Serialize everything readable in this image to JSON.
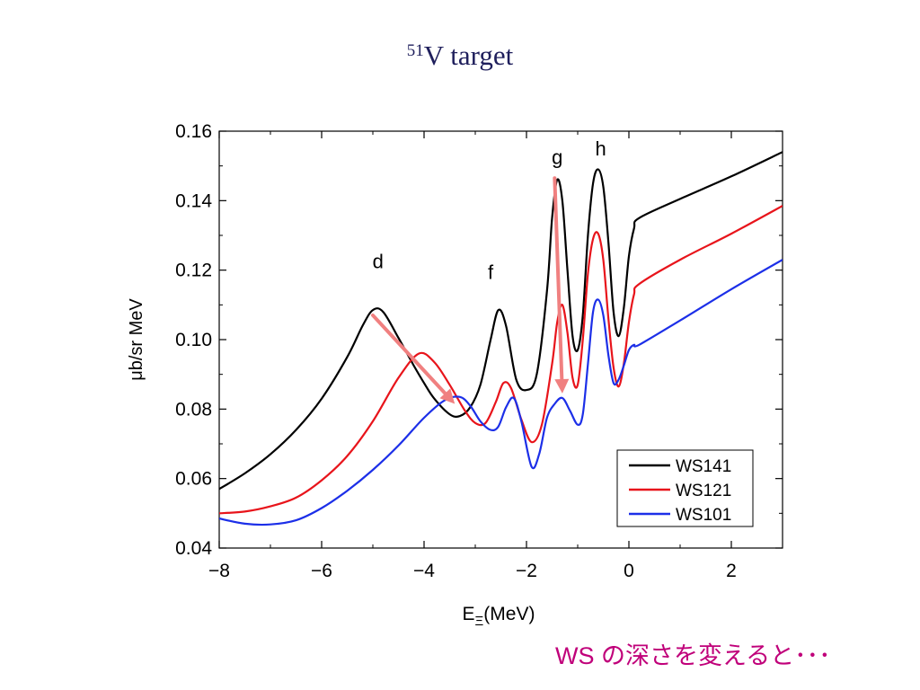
{
  "title": {
    "sup": "51",
    "text": "V target"
  },
  "caption": "WS の深さを変えると･･･",
  "chart_data": {
    "type": "line",
    "xlabel": "E",
    "xlabel_sub": "Ξ",
    "xlabel_unit": "(MeV)",
    "ylabel": "μb/sr MeV",
    "xlim": [
      -8,
      3
    ],
    "ylim": [
      0.04,
      0.16
    ],
    "xticks": [
      -8,
      -6,
      -4,
      -2,
      0,
      2
    ],
    "yticks": [
      0.04,
      0.06,
      0.08,
      0.1,
      0.12,
      0.14,
      0.16
    ],
    "xtick_labels": [
      "−8",
      "−6",
      "−4",
      "−2",
      "0",
      "2"
    ],
    "ytick_labels": [
      "0.04",
      "0.06",
      "0.08",
      "0.10",
      "0.12",
      "0.14",
      "0.16"
    ],
    "legend_position": "bottom-right",
    "series": [
      {
        "name": "WS141",
        "color": "#000000",
        "x": [
          -8,
          -7.5,
          -7,
          -6.5,
          -6,
          -5.5,
          -5.2,
          -5,
          -4.8,
          -4.5,
          -4.2,
          -4,
          -3.8,
          -3.5,
          -3.3,
          -3.1,
          -2.9,
          -2.7,
          -2.55,
          -2.4,
          -2.2,
          -2.0,
          -1.8,
          -1.6,
          -1.5,
          -1.4,
          -1.3,
          -1.2,
          -1.1,
          -1.0,
          -0.9,
          -0.8,
          -0.7,
          -0.6,
          -0.5,
          -0.4,
          -0.3,
          -0.2,
          -0.1,
          0,
          0.1,
          0.2,
          1,
          2,
          3
        ],
        "y": [
          0.057,
          0.0615,
          0.067,
          0.074,
          0.083,
          0.095,
          0.104,
          0.1085,
          0.108,
          0.1005,
          0.0925,
          0.0875,
          0.083,
          0.0785,
          0.078,
          0.0805,
          0.087,
          0.1,
          0.1085,
          0.104,
          0.0885,
          0.0855,
          0.09,
          0.114,
          0.135,
          0.146,
          0.14,
          0.12,
          0.101,
          0.097,
          0.107,
          0.13,
          0.145,
          0.149,
          0.144,
          0.128,
          0.108,
          0.101,
          0.109,
          0.124,
          0.132,
          0.135,
          0.1405,
          0.147,
          0.154
        ]
      },
      {
        "name": "WS121",
        "color": "#e8141b",
        "x": [
          -8,
          -7.5,
          -7,
          -6.5,
          -6,
          -5.5,
          -5,
          -4.5,
          -4.1,
          -3.8,
          -3.5,
          -3.2,
          -3,
          -2.8,
          -2.6,
          -2.45,
          -2.3,
          -2.1,
          -1.9,
          -1.7,
          -1.5,
          -1.4,
          -1.3,
          -1.2,
          -1.1,
          -1.0,
          -0.9,
          -0.8,
          -0.7,
          -0.6,
          -0.5,
          -0.4,
          -0.3,
          -0.2,
          -0.1,
          0,
          0.1,
          0.2,
          1,
          2,
          3
        ],
        "y": [
          0.05,
          0.0505,
          0.052,
          0.0545,
          0.0595,
          0.0665,
          0.0765,
          0.089,
          0.096,
          0.0935,
          0.087,
          0.0795,
          0.076,
          0.076,
          0.082,
          0.0875,
          0.086,
          0.077,
          0.0705,
          0.0755,
          0.093,
          0.105,
          0.11,
          0.102,
          0.089,
          0.087,
          0.1,
          0.119,
          0.129,
          0.1305,
          0.123,
          0.106,
          0.092,
          0.0865,
          0.093,
          0.105,
          0.113,
          0.116,
          0.123,
          0.1305,
          0.1385
        ]
      },
      {
        "name": "WS101",
        "color": "#1c2fe8",
        "x": [
          -8,
          -7.5,
          -7,
          -6.5,
          -6,
          -5.5,
          -5,
          -4.5,
          -4,
          -3.6,
          -3.3,
          -3.1,
          -2.9,
          -2.7,
          -2.55,
          -2.4,
          -2.25,
          -2.1,
          -1.9,
          -1.75,
          -1.6,
          -1.45,
          -1.3,
          -1.15,
          -1.0,
          -0.9,
          -0.8,
          -0.7,
          -0.6,
          -0.5,
          -0.4,
          -0.3,
          -0.2,
          -0.1,
          0,
          0.1,
          0.2,
          1,
          2,
          3
        ],
        "y": [
          0.0485,
          0.047,
          0.0468,
          0.048,
          0.0515,
          0.0565,
          0.0625,
          0.0695,
          0.0775,
          0.0825,
          0.0835,
          0.081,
          0.0765,
          0.074,
          0.075,
          0.0805,
          0.0832,
          0.0765,
          0.0634,
          0.0672,
          0.0775,
          0.0815,
          0.0832,
          0.0795,
          0.0755,
          0.0785,
          0.093,
          0.108,
          0.1115,
          0.107,
          0.0955,
          0.0875,
          0.0885,
          0.0925,
          0.097,
          0.0985,
          0.0985,
          0.1055,
          0.1145,
          0.123
        ]
      }
    ],
    "annotations": [
      {
        "label": "d",
        "x": -4.9,
        "y": 0.1205
      },
      {
        "label": "f",
        "x": -2.7,
        "y": 0.1175
      },
      {
        "label": "g",
        "x": -1.4,
        "y": 0.1505
      },
      {
        "label": "h",
        "x": -0.55,
        "y": 0.153
      }
    ],
    "arrows": [
      {
        "from": [
          -5.0,
          0.107
        ],
        "to": [
          -3.4,
          0.0815
        ]
      },
      {
        "from": [
          -1.45,
          0.1465
        ],
        "to": [
          -1.3,
          0.0845
        ]
      }
    ],
    "arrow_color": "#f08080"
  }
}
